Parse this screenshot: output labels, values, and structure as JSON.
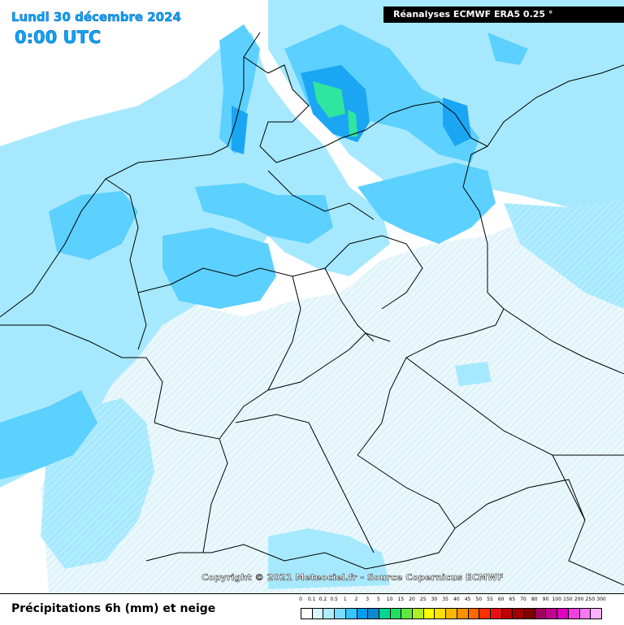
{
  "header": {
    "date": "Lundi 30 décembre 2024",
    "time": "0:00 UTC",
    "source": "Réanalyses ECMWF ERA5 0.25 °"
  },
  "copyright": "Copyright © 2021 Meteociel.fr - Source Copernicus ECMWF",
  "legend": {
    "title": "Précipitations 6h (mm) et neige",
    "labels": [
      "0",
      "0.1",
      "0.2",
      "0.5",
      "1",
      "2",
      "3",
      "5",
      "10",
      "15",
      "20",
      "25",
      "30",
      "35",
      "40",
      "45",
      "50",
      "55",
      "60",
      "65",
      "70",
      "80",
      "90",
      "100",
      "150",
      "200",
      "250",
      "300"
    ],
    "colors": [
      "#ffffff",
      "#d8f5ff",
      "#b0ecff",
      "#7cdcff",
      "#38c2ff",
      "#009cf0",
      "#1088d0",
      "#00d890",
      "#20e060",
      "#60e840",
      "#b0f020",
      "#ffff00",
      "#ffe000",
      "#ffb800",
      "#ff9000",
      "#ff6800",
      "#ff3000",
      "#e81010",
      "#c00000",
      "#a00000",
      "#800000",
      "#a00060",
      "#c00090",
      "#e000c0",
      "#f040e0",
      "#f878f0",
      "#ffb0ff"
    ]
  },
  "colors": {
    "light_precip": "#a6e9ff",
    "moderate_precip": "#5cd0ff",
    "heavy_precip": "#1aa6f2",
    "very_heavy_precip": "#2fe6a0",
    "snow_hatch": "#e2f6fb",
    "border": "#000000"
  }
}
